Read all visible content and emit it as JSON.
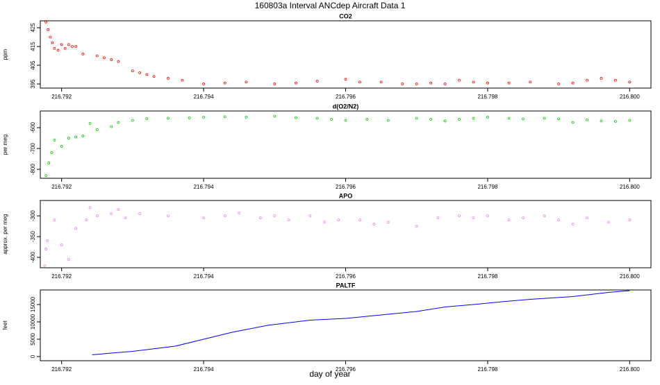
{
  "title": "160803a   Interval ANCdep Aircraft Data 1",
  "x_label": "day of year",
  "chart_data": [
    {
      "type": "scatter",
      "title": "CO2",
      "y_label": "ppm",
      "color": "#ff0000",
      "xlim": [
        216.7917,
        216.8003
      ],
      "xticks": [
        216.792,
        216.794,
        216.796,
        216.798,
        {
          "value": 216.8,
          "label": "216.800"
        }
      ],
      "ylim": [
        392.8,
        428.7
      ],
      "yticks": [
        395,
        405,
        415,
        425
      ],
      "x": [
        216.79178,
        216.79181,
        216.79184,
        216.79187,
        216.7919,
        216.79195,
        216.792,
        216.79205,
        216.7921,
        216.79215,
        216.7922,
        216.7923,
        216.7925,
        216.7926,
        216.7927,
        216.7928,
        216.793,
        216.7931,
        216.7932,
        216.7933,
        216.7935,
        216.7937,
        216.794,
        216.7943,
        216.7946,
        216.795,
        216.7953,
        216.7956,
        216.796,
        216.7962,
        216.7965,
        216.7968,
        216.797,
        216.7972,
        216.7974,
        216.7976,
        216.7978,
        216.798,
        216.7983,
        216.7986,
        216.799,
        216.7992,
        216.7994,
        216.7996,
        216.7998,
        216.8
      ],
      "values": [
        428,
        424,
        420,
        417,
        414,
        413,
        416,
        414,
        416,
        415,
        415,
        411,
        410,
        409,
        408,
        407,
        402,
        401,
        400,
        399,
        398,
        397,
        395,
        395.5,
        396,
        395,
        395.5,
        396.5,
        397.5,
        396,
        396,
        395,
        395,
        395.5,
        395,
        397,
        396,
        395.5,
        395.5,
        396,
        395,
        395.5,
        397,
        398,
        397,
        396
      ]
    },
    {
      "type": "scatter",
      "title": "d(O2/N2)",
      "y_label": "per meg",
      "color": "#00cc00",
      "xlim": [
        216.7917,
        216.8003
      ],
      "xticks": [
        216.792,
        216.794,
        216.796,
        216.798,
        {
          "value": 216.8,
          "label": "216.800"
        }
      ],
      "ylim": [
        -843,
        -520
      ],
      "yticks": [
        -800,
        -700,
        -600
      ],
      "x": [
        216.79178,
        216.79182,
        216.79186,
        216.7919,
        216.792,
        216.7921,
        216.7922,
        216.7923,
        216.7924,
        216.7925,
        216.7927,
        216.7928,
        216.793,
        216.7932,
        216.7935,
        216.7938,
        216.794,
        216.7943,
        216.7946,
        216.795,
        216.7953,
        216.7956,
        216.7958,
        216.796,
        216.7963,
        216.7966,
        216.797,
        216.7972,
        216.7974,
        216.7976,
        216.7978,
        216.798,
        216.7983,
        216.7985,
        216.7988,
        216.799,
        216.7992,
        216.7994,
        216.7996,
        216.7998,
        216.8
      ],
      "values": [
        -830,
        -770,
        -720,
        -660,
        -690,
        -650,
        -645,
        -640,
        -580,
        -610,
        -595,
        -575,
        -565,
        -557,
        -555,
        -553,
        -550,
        -548,
        -550,
        -545,
        -552,
        -555,
        -560,
        -565,
        -560,
        -565,
        -555,
        -560,
        -568,
        -560,
        -555,
        -550,
        -555,
        -558,
        -555,
        -558,
        -575,
        -562,
        -568,
        -570,
        -565
      ]
    },
    {
      "type": "scatter",
      "title": "APO",
      "y_label": "approx. per meg",
      "color": "#ee82ee",
      "xlim": [
        216.7917,
        216.8003
      ],
      "xticks": [
        216.792,
        216.794,
        216.796,
        216.798,
        {
          "value": 216.8,
          "label": "216.800"
        }
      ],
      "ylim": [
        -425,
        -263
      ],
      "yticks": [
        -400,
        -350,
        -300
      ],
      "x": [
        216.79176,
        216.79178,
        216.7918,
        216.7919,
        216.792,
        216.7921,
        216.7922,
        216.79235,
        216.7924,
        216.7925,
        216.7927,
        216.7928,
        216.7929,
        216.7931,
        216.7935,
        216.794,
        216.7943,
        216.7945,
        216.7948,
        216.795,
        216.7952,
        216.7955,
        216.7957,
        216.7959,
        216.7962,
        216.7964,
        216.7966,
        216.797,
        216.7973,
        216.7976,
        216.7978,
        216.798,
        216.7983,
        216.7985,
        216.7988,
        216.799,
        216.7992,
        216.7994,
        216.7997,
        216.8
      ],
      "values": [
        -420,
        -380,
        -360,
        -310,
        -370,
        -405,
        -330,
        -310,
        -280,
        -300,
        -295,
        -285,
        -305,
        -295,
        -300,
        -305,
        -300,
        -293,
        -305,
        -300,
        -310,
        -300,
        -315,
        -310,
        -310,
        -320,
        -315,
        -325,
        -305,
        -300,
        -305,
        -300,
        -310,
        -305,
        -300,
        -310,
        -320,
        -305,
        -315,
        -310
      ]
    },
    {
      "type": "line",
      "title": "PALTF",
      "y_label": "feet",
      "color": "#0000ff",
      "xlim": [
        216.7917,
        216.8003
      ],
      "xticks": [
        216.792,
        216.794,
        216.796,
        216.798,
        {
          "value": 216.8,
          "label": "216.800"
        }
      ],
      "ylim": [
        -1200,
        19200
      ],
      "yticks": [
        0,
        5000,
        10000,
        15000
      ],
      "x": [
        216.79243,
        216.7927,
        216.793,
        216.7932,
        216.7936,
        216.794,
        216.7944,
        216.7949,
        216.7955,
        216.796,
        216.7965,
        216.797,
        216.7974,
        216.7978,
        216.7982,
        216.7986,
        216.7992,
        216.7997,
        216.8
      ],
      "values": [
        500,
        1000,
        1500,
        2000,
        3000,
        5000,
        7000,
        9000,
        10500,
        11000,
        12000,
        13000,
        14300,
        15000,
        15800,
        16500,
        17300,
        18500,
        19000
      ]
    }
  ]
}
